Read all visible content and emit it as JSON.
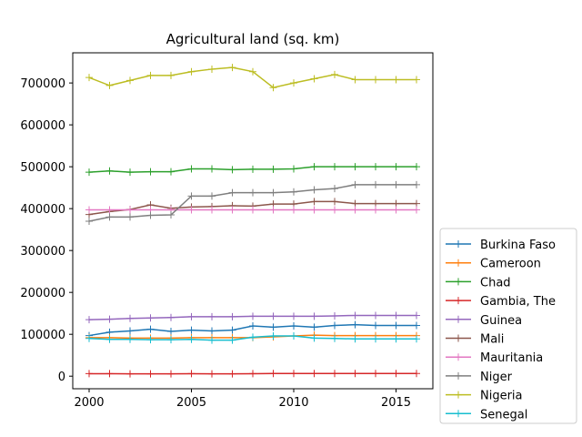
{
  "chart_data": {
    "type": "line",
    "title": "Agricultural land (sq. km)",
    "xlabel": "",
    "ylabel": "",
    "x": [
      2000,
      2001,
      2002,
      2003,
      2004,
      2005,
      2006,
      2007,
      2008,
      2009,
      2010,
      2011,
      2012,
      2013,
      2014,
      2015,
      2016
    ],
    "x_ticks": [
      2000,
      2005,
      2010,
      2015
    ],
    "y_ticks": [
      0,
      100000,
      200000,
      300000,
      400000,
      500000,
      600000,
      700000
    ],
    "xlim": [
      1999.2,
      2016.8
    ],
    "ylim": [
      -30000,
      772000
    ],
    "legend_position": "outside-right-bottom",
    "marker": "+",
    "series": [
      {
        "name": "Burkina Faso",
        "color": "#1f77b4",
        "values": [
          97000,
          105000,
          108000,
          112000,
          107000,
          110000,
          108000,
          110000,
          120000,
          117000,
          120000,
          117000,
          121000,
          123000,
          121000,
          121000,
          121000
        ]
      },
      {
        "name": "Cameroon",
        "color": "#ff7f0e",
        "values": [
          92000,
          92000,
          91000,
          91000,
          91000,
          92000,
          92000,
          92000,
          92000,
          94000,
          96000,
          98000,
          97000,
          97000,
          97000,
          97000,
          97000
        ]
      },
      {
        "name": "Chad",
        "color": "#2ca02c",
        "values": [
          487000,
          490000,
          487000,
          488000,
          488000,
          495000,
          495000,
          493000,
          494000,
          494000,
          495000,
          500000,
          500000,
          500000,
          500000,
          500000,
          500000
        ]
      },
      {
        "name": "Gambia, The",
        "color": "#d62728",
        "values": [
          6000,
          6000,
          5500,
          5500,
          5500,
          6000,
          5500,
          5500,
          6000,
          6500,
          6500,
          6500,
          6500,
          6500,
          6500,
          6500,
          6500
        ]
      },
      {
        "name": "Guinea",
        "color": "#9467bd",
        "values": [
          135000,
          136000,
          138000,
          139000,
          140000,
          142000,
          142000,
          142000,
          143000,
          143000,
          143000,
          143000,
          144000,
          145000,
          145000,
          145000,
          145000
        ]
      },
      {
        "name": "Mali",
        "color": "#8c564b",
        "values": [
          386000,
          393000,
          398000,
          409000,
          401000,
          404000,
          405000,
          407000,
          406000,
          411000,
          411000,
          417000,
          417000,
          412000,
          412000,
          412000,
          412000
        ]
      },
      {
        "name": "Mauritania",
        "color": "#e377c2",
        "values": [
          397000,
          397000,
          397000,
          397000,
          397000,
          397000,
          397000,
          397000,
          397000,
          397000,
          397000,
          397000,
          397000,
          397000,
          397000,
          397000,
          397000
        ]
      },
      {
        "name": "Niger",
        "color": "#7f7f7f",
        "values": [
          370000,
          380000,
          380000,
          384000,
          385000,
          430000,
          430000,
          438000,
          438000,
          438000,
          440000,
          445000,
          448000,
          457000,
          457000,
          457000,
          457000
        ]
      },
      {
        "name": "Nigeria",
        "color": "#bcbd22",
        "values": [
          713000,
          694000,
          706000,
          718000,
          718000,
          727000,
          733000,
          737000,
          727000,
          689000,
          700000,
          710000,
          720000,
          708000,
          708000,
          708000,
          708000
        ]
      },
      {
        "name": "Senegal",
        "color": "#17becf",
        "values": [
          90000,
          88000,
          88000,
          87000,
          87000,
          88000,
          86000,
          86000,
          93000,
          96000,
          96000,
          91000,
          90000,
          89000,
          89000,
          89000,
          89000
        ]
      }
    ]
  }
}
